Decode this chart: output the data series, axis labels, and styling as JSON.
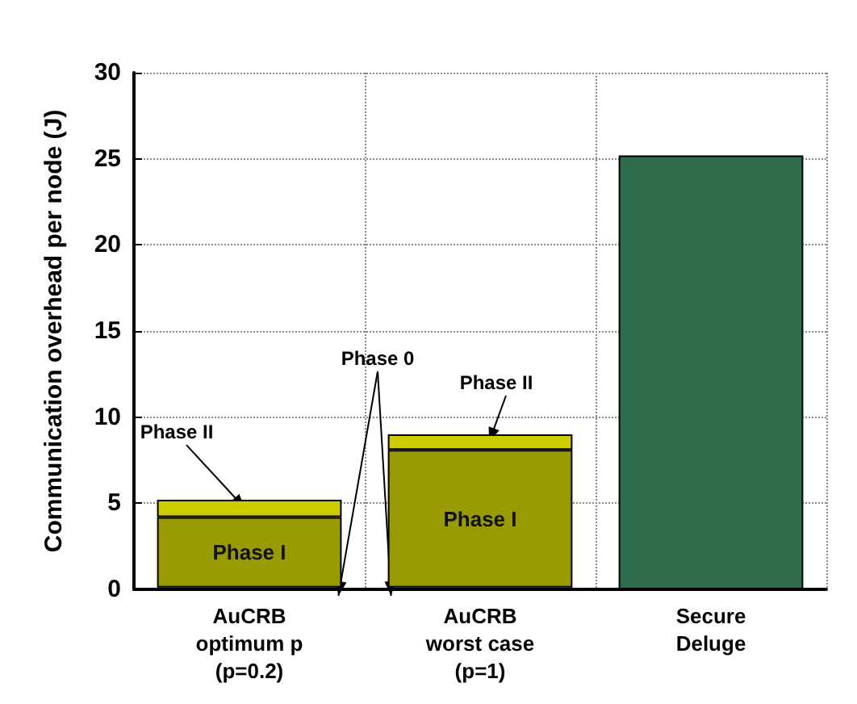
{
  "chart_data": {
    "type": "bar",
    "ylabel": "Communication overhead per node (J)",
    "categories": [
      "AuCRB\noptimum p\n(p=0.2)",
      "AuCRB\nworst case\n(p=1)",
      "Secure\nDeluge"
    ],
    "stacked": true,
    "series": [
      {
        "name": "Phase 0",
        "color": "#999900",
        "values": [
          0.1,
          0.1,
          null
        ]
      },
      {
        "name": "Phase I",
        "color": "#999900",
        "values": [
          4.1,
          8.0,
          null
        ]
      },
      {
        "name": "Phase II",
        "color": "#cccc00",
        "values": [
          1.0,
          0.9,
          null
        ]
      },
      {
        "color": "#2e6b4b",
        "values": [
          null,
          null,
          25.2
        ]
      }
    ],
    "ylim": [
      0,
      30
    ],
    "yticks": [
      0,
      5,
      10,
      15,
      20,
      25,
      30
    ],
    "grid": true,
    "legend": false
  }
}
